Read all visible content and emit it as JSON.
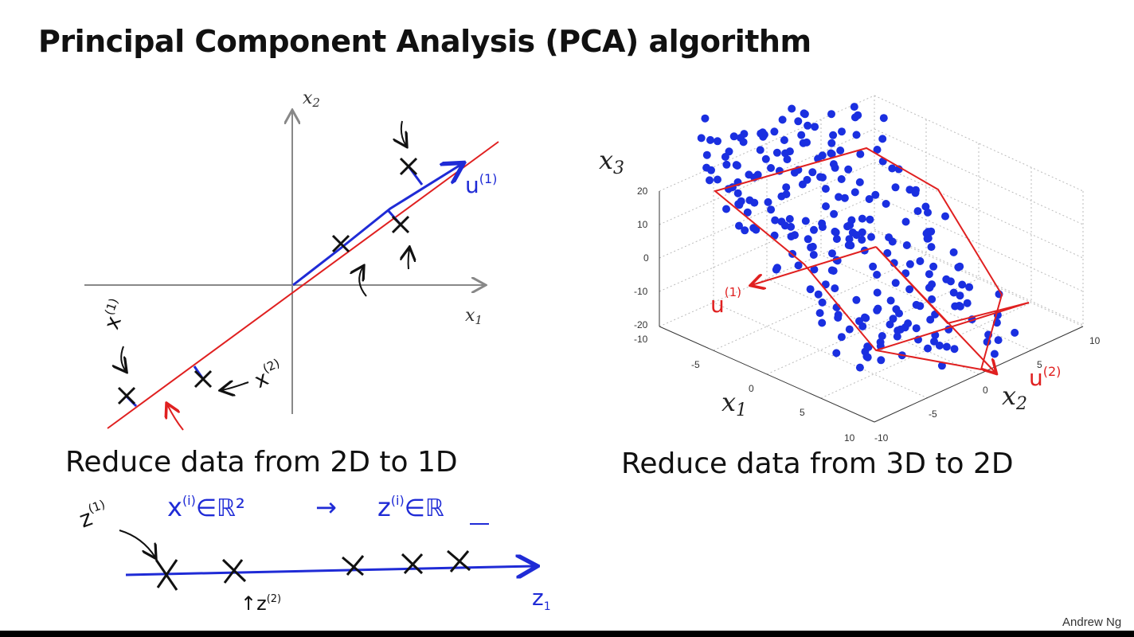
{
  "title": "Principal Component Analysis (PCA) algorithm",
  "left_figure": {
    "caption": "Reduce data from 2D to 1D",
    "x_axis_label": "x",
    "x_axis_sub": "1",
    "y_axis_label": "x",
    "y_axis_sub": "2",
    "annotations": {
      "u1": "u",
      "u1_sup": "(1)",
      "x1": "x",
      "x1_sup": "(1)",
      "x2": "x",
      "x2_sup": "(2)"
    }
  },
  "right_figure": {
    "caption": "Reduce data from 3D to 2D",
    "z_axis_label": "x",
    "z_axis_sub": "3",
    "x1_label": "x",
    "x1_sub": "1",
    "x2_label": "x",
    "x2_sub": "2",
    "z_ticks": [
      "20",
      "10",
      "0",
      "-10",
      "-20"
    ],
    "x1_ticks": [
      "-10",
      "-5",
      "0",
      "5",
      "10"
    ],
    "x2_ticks": [
      "-10",
      "-5",
      "0",
      "5",
      "10"
    ],
    "annotations": {
      "u1": "u",
      "u1_sup": "(1)",
      "u2": "u",
      "u2_sup": "(2)"
    }
  },
  "handwritten_notes": {
    "z1_label": "z",
    "z1_sup": "(1)",
    "x_in": "x",
    "x_in_sup": "(i)",
    "in_r2": "∈ℝ²",
    "arrow": "→",
    "z_in": "z",
    "z_in_sup": "(i)",
    "in_r": "∈ℝ",
    "z_axis": "z",
    "z_axis_sub": "1",
    "z2_label": "z",
    "z2_sup": "(2)"
  },
  "credit": "Andrew Ng",
  "colors": {
    "red": "#e02020",
    "blue": "#1f2bd6",
    "point_blue": "#1a2fe0"
  }
}
